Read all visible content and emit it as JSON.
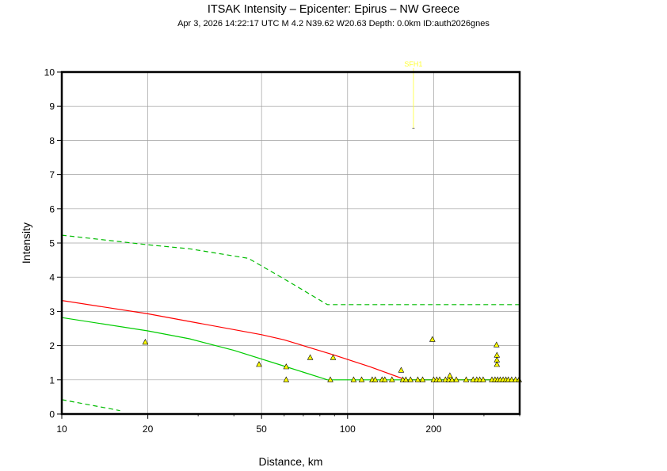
{
  "header": {
    "title": "ITSAK Intensity –   Epicenter: Epirus – NW Greece",
    "subtitle": "Apr  3, 2026 14:22:17 UTC   M 4.2   N39.62 W20.63   Depth: 0.0km   ID:auth2026gnes"
  },
  "chart_data": {
    "type": "scatter",
    "xlabel": "Distance, km",
    "ylabel": "Intensity",
    "x_scale": "log",
    "xlim": [
      10,
      400
    ],
    "ylim": [
      0,
      10
    ],
    "x_ticks": [
      10,
      20,
      50,
      100,
      200
    ],
    "y_ticks": [
      0,
      1,
      2,
      3,
      4,
      5,
      6,
      7,
      8,
      9,
      10
    ],
    "grid": true,
    "colors": {
      "median": "#ff0000",
      "lower_mean": "#00cc00",
      "bounds": "#00bb00",
      "stations": "#ffff00",
      "annotation": "#ffff33"
    },
    "curves": [
      {
        "id": "median",
        "style": "solid",
        "color": "#ff0000",
        "points": [
          [
            10,
            3.32
          ],
          [
            20,
            2.93
          ],
          [
            30,
            2.66
          ],
          [
            50,
            2.32
          ],
          [
            60,
            2.17
          ],
          [
            90,
            1.72
          ],
          [
            120,
            1.38
          ],
          [
            160,
            1.0
          ],
          [
            400,
            1.0
          ]
        ]
      },
      {
        "id": "lower",
        "style": "solid",
        "color": "#00cc00",
        "points": [
          [
            10,
            2.82
          ],
          [
            20,
            2.43
          ],
          [
            28,
            2.2
          ],
          [
            40,
            1.86
          ],
          [
            60,
            1.4
          ],
          [
            85,
            1.0
          ],
          [
            400,
            1.0
          ]
        ]
      },
      {
        "id": "upper-bound",
        "style": "dashed",
        "color": "#00bb00",
        "points": [
          [
            10,
            5.23
          ],
          [
            20,
            4.95
          ],
          [
            28,
            4.83
          ],
          [
            45,
            4.55
          ],
          [
            60,
            3.95
          ],
          [
            85,
            3.2
          ],
          [
            400,
            3.2
          ]
        ]
      },
      {
        "id": "lower-bound",
        "style": "dashed",
        "color": "#00bb00",
        "points": [
          [
            10,
            0.42
          ],
          [
            16,
            0.1
          ]
        ]
      }
    ],
    "stations": [
      [
        19.6,
        2.1
      ],
      [
        49,
        1.45
      ],
      [
        61,
        1.38
      ],
      [
        61,
        1.0
      ],
      [
        74,
        1.65
      ],
      [
        87,
        1.0
      ],
      [
        89,
        1.65
      ],
      [
        105,
        1.0
      ],
      [
        112,
        1.0
      ],
      [
        122,
        1.0
      ],
      [
        125,
        1.0
      ],
      [
        132,
        1.0
      ],
      [
        135,
        1.0
      ],
      [
        143,
        1.0
      ],
      [
        154,
        1.28
      ],
      [
        156,
        1.0
      ],
      [
        160,
        1.0
      ],
      [
        166,
        1.0
      ],
      [
        176,
        1.0
      ],
      [
        183,
        1.0
      ],
      [
        198,
        2.18
      ],
      [
        200,
        1.0
      ],
      [
        205,
        1.0
      ],
      [
        210,
        1.0
      ],
      [
        220,
        1.0
      ],
      [
        226,
        1.0
      ],
      [
        228,
        1.12
      ],
      [
        232,
        1.0
      ],
      [
        240,
        1.0
      ],
      [
        260,
        1.0
      ],
      [
        275,
        1.0
      ],
      [
        283,
        1.0
      ],
      [
        290,
        1.0
      ],
      [
        298,
        1.0
      ],
      [
        320,
        1.0
      ],
      [
        328,
        1.0
      ],
      [
        332,
        2.02
      ],
      [
        333,
        1.72
      ],
      [
        333,
        1.58
      ],
      [
        333,
        1.45
      ],
      [
        335,
        1.0
      ],
      [
        342,
        1.0
      ],
      [
        350,
        1.0
      ],
      [
        358,
        1.0
      ],
      [
        365,
        1.0
      ],
      [
        375,
        1.0
      ],
      [
        387,
        1.0
      ],
      [
        398,
        1.0
      ]
    ],
    "annotation": {
      "label": "SFH1",
      "x": 170,
      "y": 8.35,
      "color": "#ffff33"
    }
  }
}
